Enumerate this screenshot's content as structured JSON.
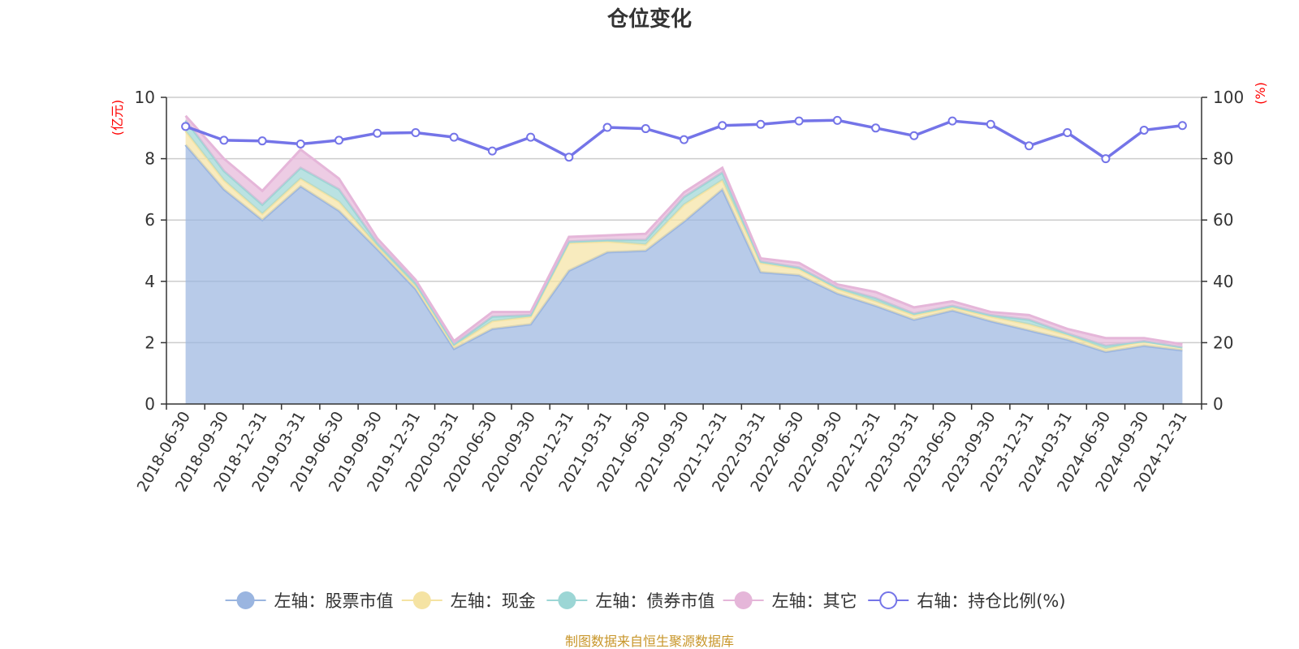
{
  "chart_data": {
    "type": "area",
    "title": "仓位变化",
    "left_axis": {
      "unit": "(亿元)",
      "ylim": [
        0,
        10
      ],
      "ticks": [
        "0",
        "2",
        "4",
        "6",
        "8",
        "10"
      ]
    },
    "right_axis": {
      "unit": "(%)",
      "ylim": [
        0,
        100
      ],
      "ticks": [
        "0",
        "20",
        "40",
        "60",
        "80",
        "100"
      ]
    },
    "categories": [
      "2018-06-30",
      "2018-09-30",
      "2018-12-31",
      "2019-03-31",
      "2019-06-30",
      "2019-09-30",
      "2019-12-31",
      "2020-03-31",
      "2020-06-30",
      "2020-09-30",
      "2020-12-31",
      "2021-03-31",
      "2021-06-30",
      "2021-09-30",
      "2021-12-31",
      "2022-03-31",
      "2022-06-30",
      "2022-09-30",
      "2022-12-31",
      "2023-03-31",
      "2023-06-30",
      "2023-09-30",
      "2023-12-31",
      "2024-03-31",
      "2024-06-30",
      "2024-09-30",
      "2024-12-31"
    ],
    "grid": true,
    "legend_position": "bottom",
    "stacked_series": [
      {
        "name": "左轴：股票市值",
        "color": "#9ab5e0",
        "values": [
          8.45,
          7.0,
          6.0,
          7.1,
          6.3,
          5.05,
          3.75,
          1.8,
          2.45,
          2.6,
          4.35,
          4.95,
          5.0,
          5.95,
          7.0,
          4.3,
          4.2,
          3.6,
          3.2,
          2.75,
          3.05,
          2.7,
          2.4,
          2.1,
          1.7,
          1.9,
          1.75
        ]
      },
      {
        "name": "左轴：现金",
        "color": "#f5e3a3",
        "values": [
          0.45,
          0.3,
          0.2,
          0.25,
          0.3,
          0.1,
          0.1,
          0.1,
          0.25,
          0.25,
          0.9,
          0.35,
          0.2,
          0.55,
          0.3,
          0.3,
          0.2,
          0.15,
          0.15,
          0.15,
          0.1,
          0.15,
          0.2,
          0.15,
          0.1,
          0.15,
          0.1
        ]
      },
      {
        "name": "左轴：债券市值",
        "color": "#9cd6d5",
        "values": [
          0.35,
          0.3,
          0.3,
          0.35,
          0.4,
          0.1,
          0.1,
          0.05,
          0.15,
          0.05,
          0.05,
          0.05,
          0.15,
          0.25,
          0.25,
          0.05,
          0.05,
          0.05,
          0.1,
          0.05,
          0.05,
          0.05,
          0.15,
          0.05,
          0.1,
          0.0,
          0.0
        ]
      },
      {
        "name": "左轴：其它",
        "color": "#e5b6d9",
        "values": [
          0.15,
          0.4,
          0.45,
          0.6,
          0.35,
          0.15,
          0.1,
          0.1,
          0.15,
          0.1,
          0.15,
          0.15,
          0.2,
          0.15,
          0.15,
          0.1,
          0.15,
          0.1,
          0.2,
          0.2,
          0.15,
          0.1,
          0.15,
          0.15,
          0.25,
          0.1,
          0.1
        ]
      }
    ],
    "line_series": {
      "name": "右轴：持仓比例(%)",
      "color": "#7474e8",
      "axis": "right",
      "values": [
        90.5,
        86.0,
        85.8,
        84.8,
        86.0,
        88.3,
        88.5,
        87.0,
        82.5,
        87.0,
        80.5,
        90.2,
        89.8,
        86.2,
        90.8,
        91.2,
        92.3,
        92.5,
        90.0,
        87.5,
        92.3,
        91.2,
        84.2,
        88.5,
        80.0,
        89.3,
        90.8
      ]
    }
  },
  "footer": {
    "source": "制图数据来自恒生聚源数据库"
  }
}
